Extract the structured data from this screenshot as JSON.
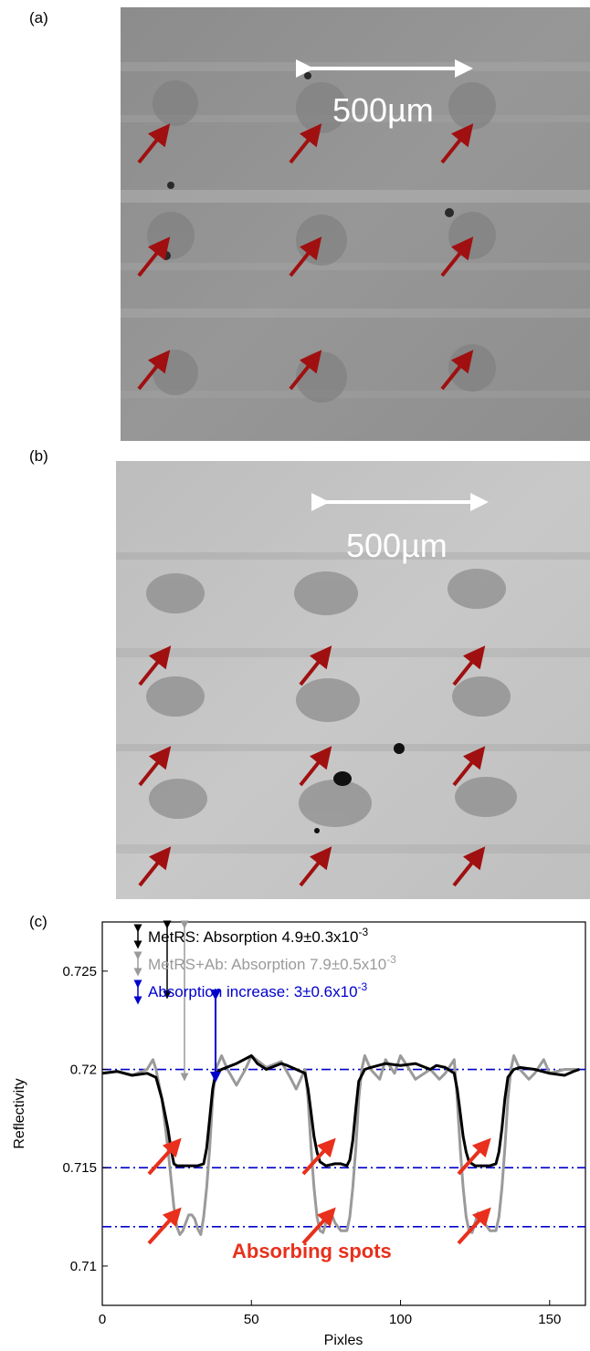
{
  "panels": {
    "a": {
      "label": "(a)",
      "scale_bar": "500µm"
    },
    "b": {
      "label": "(b)",
      "scale_bar": "500µm"
    },
    "c": {
      "label": "(c)"
    }
  },
  "colors": {
    "arrow": "#a01010",
    "plot_arrow": "#e8301c",
    "metrs": "#000000",
    "metrs_ab": "#9a9a9a",
    "increase": "#0000cc",
    "reference_line": "#0000cc"
  },
  "chart_data": {
    "type": "line",
    "xlabel": "Pixles",
    "ylabel": "Reflectivity",
    "xlim": [
      0,
      162
    ],
    "ylim": [
      0.708,
      0.7275
    ],
    "xticks": [
      0,
      50,
      100,
      150
    ],
    "yticks": [
      0.71,
      0.715,
      0.72,
      0.725
    ],
    "xtick_labels": [
      "0",
      "50",
      "100",
      "150"
    ],
    "ytick_labels": [
      "0.71",
      "0.715",
      "0.72",
      "0.725"
    ],
    "legend": [
      {
        "name": "MetRS",
        "prefix": "MetRS: Absorption 4.9±0.3x10",
        "exp": "-3",
        "color": "#000000"
      },
      {
        "name": "MetRS+Ab",
        "prefix": "MetRS+Ab: Absorption 7.9±0.5x10",
        "exp": "-3",
        "color": "#9a9a9a"
      },
      {
        "name": "increase",
        "prefix": "Absorption increase: 3±0.6x10",
        "exp": "-3",
        "color": "#0000cc"
      }
    ],
    "annotation": "Absorbing spots",
    "reference_lines": [
      0.72,
      0.715,
      0.712
    ],
    "series": [
      {
        "name": "MetRS",
        "color": "#000000",
        "x": [
          0,
          5,
          10,
          15,
          18,
          20,
          22,
          23,
          24,
          25,
          26,
          27,
          28,
          30,
          32,
          34,
          35,
          36,
          37,
          38,
          40,
          45,
          50,
          52,
          55,
          60,
          62,
          65,
          68,
          69,
          70,
          71,
          72,
          73,
          75,
          78,
          80,
          82,
          83,
          84,
          85,
          86,
          88,
          90,
          95,
          100,
          105,
          110,
          112,
          115,
          118,
          119,
          120,
          121,
          122,
          123,
          125,
          128,
          130,
          132,
          133,
          134,
          135,
          136,
          138,
          140,
          145,
          150,
          155,
          158,
          160
        ],
        "y": [
          0.7198,
          0.7199,
          0.7197,
          0.7198,
          0.7196,
          0.7185,
          0.717,
          0.716,
          0.7152,
          0.7151,
          0.7151,
          0.7151,
          0.7151,
          0.7151,
          0.7151,
          0.7152,
          0.716,
          0.7175,
          0.719,
          0.7198,
          0.72,
          0.7203,
          0.7207,
          0.7203,
          0.72,
          0.7203,
          0.7202,
          0.72,
          0.7198,
          0.719,
          0.7178,
          0.7166,
          0.7158,
          0.7153,
          0.7151,
          0.7152,
          0.7152,
          0.7151,
          0.7154,
          0.7164,
          0.718,
          0.7194,
          0.72,
          0.7201,
          0.7203,
          0.7202,
          0.7203,
          0.72,
          0.7202,
          0.7201,
          0.7198,
          0.719,
          0.7178,
          0.7166,
          0.7158,
          0.7153,
          0.7151,
          0.7151,
          0.7151,
          0.7152,
          0.7158,
          0.717,
          0.7185,
          0.7196,
          0.72,
          0.7201,
          0.72,
          0.7198,
          0.7197,
          0.7199,
          0.72
        ]
      },
      {
        "name": "MetRS+Ab",
        "color": "#9a9a9a",
        "x": [
          0,
          5,
          10,
          15,
          17,
          18,
          20,
          22,
          23,
          24,
          25,
          26,
          27,
          28,
          29,
          30,
          31,
          32,
          33,
          34,
          35,
          36,
          37,
          38,
          40,
          42,
          45,
          48,
          50,
          55,
          60,
          63,
          65,
          68,
          69,
          70,
          71,
          72,
          73,
          74,
          75,
          76,
          77,
          78,
          80,
          82,
          83,
          84,
          85,
          86,
          87,
          88,
          90,
          93,
          95,
          98,
          100,
          103,
          105,
          108,
          110,
          113,
          115,
          118,
          119,
          120,
          121,
          122,
          123,
          124,
          125,
          126,
          127,
          128,
          130,
          132,
          133,
          134,
          135,
          136,
          137,
          138,
          140,
          143,
          145,
          148,
          150,
          155,
          160
        ],
        "y": [
          0.7198,
          0.7199,
          0.7197,
          0.72,
          0.7205,
          0.72,
          0.7185,
          0.716,
          0.7145,
          0.713,
          0.712,
          0.7116,
          0.7118,
          0.7122,
          0.7126,
          0.7126,
          0.7124,
          0.7119,
          0.7116,
          0.7125,
          0.714,
          0.716,
          0.7185,
          0.72,
          0.7207,
          0.72,
          0.7192,
          0.72,
          0.7207,
          0.7201,
          0.7204,
          0.7196,
          0.719,
          0.72,
          0.7185,
          0.716,
          0.714,
          0.7125,
          0.7118,
          0.7117,
          0.7122,
          0.7127,
          0.7126,
          0.7122,
          0.7118,
          0.7118,
          0.7125,
          0.714,
          0.716,
          0.7185,
          0.72,
          0.7207,
          0.72,
          0.7195,
          0.7205,
          0.7198,
          0.7207,
          0.72,
          0.7195,
          0.7198,
          0.72,
          0.7195,
          0.7198,
          0.7205,
          0.7185,
          0.716,
          0.714,
          0.7125,
          0.7118,
          0.7117,
          0.7122,
          0.7127,
          0.7126,
          0.7122,
          0.7118,
          0.7118,
          0.7125,
          0.714,
          0.716,
          0.7185,
          0.72,
          0.7207,
          0.72,
          0.7195,
          0.7198,
          0.7205,
          0.7198,
          0.72,
          0.72
        ]
      }
    ]
  }
}
